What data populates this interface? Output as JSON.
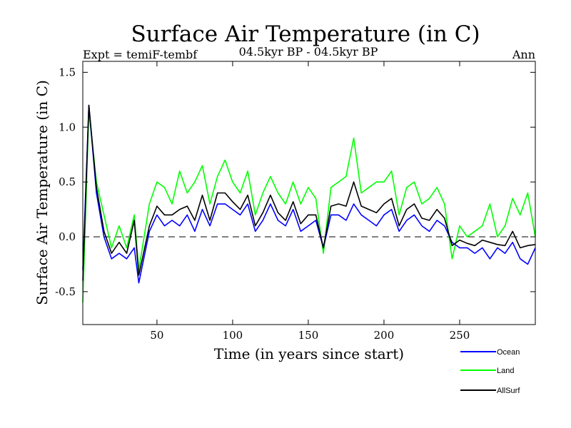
{
  "chart_data": {
    "type": "line",
    "title": "Surface Air Temperature (in C)",
    "subtitle": "04.5kyr BP - 04.5kyr BP",
    "expt_label": "Expt = temiF-tembf",
    "season_label": "Ann",
    "xlabel": "Time (in years since start)",
    "ylabel": "Surface Air Temperature (in C)",
    "xlim": [
      1,
      300
    ],
    "ylim": [
      -0.8,
      1.6
    ],
    "x_ticks": [
      50,
      100,
      150,
      200,
      250
    ],
    "x_tick_labels": [
      "50",
      "100",
      "150",
      "200",
      "250"
    ],
    "y_ticks": [
      -0.5,
      0.0,
      0.5,
      1.0,
      1.5
    ],
    "y_tick_labels": [
      "-0.5",
      "0.0",
      "0.5",
      "1.0",
      "1.5"
    ],
    "zero_line": true,
    "legend_position": "bottom-right",
    "series": [
      {
        "name": "Ocean",
        "color": "#0000ff",
        "x": [
          1,
          5,
          10,
          15,
          20,
          25,
          30,
          35,
          38,
          45,
          50,
          55,
          60,
          65,
          70,
          75,
          80,
          85,
          90,
          95,
          100,
          105,
          110,
          115,
          120,
          125,
          130,
          135,
          140,
          145,
          150,
          155,
          160,
          165,
          170,
          175,
          180,
          185,
          190,
          195,
          200,
          205,
          210,
          215,
          220,
          225,
          230,
          235,
          240,
          245,
          250,
          255,
          260,
          265,
          270,
          275,
          280,
          285,
          290,
          295,
          300
        ],
        "values": [
          -0.3,
          1.2,
          0.4,
          0.0,
          -0.2,
          -0.15,
          -0.2,
          -0.1,
          -0.42,
          0.05,
          0.2,
          0.1,
          0.15,
          0.1,
          0.2,
          0.05,
          0.25,
          0.1,
          0.3,
          0.3,
          0.25,
          0.2,
          0.3,
          0.05,
          0.15,
          0.3,
          0.15,
          0.1,
          0.25,
          0.05,
          0.1,
          0.15,
          -0.1,
          0.2,
          0.2,
          0.15,
          0.3,
          0.2,
          0.15,
          0.1,
          0.2,
          0.25,
          0.05,
          0.15,
          0.2,
          0.1,
          0.05,
          0.15,
          0.1,
          -0.05,
          -0.1,
          -0.1,
          -0.15,
          -0.1,
          -0.2,
          -0.1,
          -0.15,
          -0.05,
          -0.2,
          -0.25,
          -0.1
        ]
      },
      {
        "name": "Land",
        "color": "#00ff00",
        "x": [
          1,
          5,
          10,
          15,
          20,
          25,
          30,
          35,
          38,
          45,
          50,
          55,
          60,
          65,
          70,
          75,
          80,
          85,
          90,
          95,
          100,
          105,
          110,
          115,
          120,
          125,
          130,
          135,
          140,
          145,
          150,
          155,
          160,
          165,
          170,
          175,
          180,
          185,
          190,
          195,
          200,
          205,
          210,
          215,
          220,
          225,
          230,
          235,
          240,
          245,
          250,
          255,
          260,
          265,
          270,
          275,
          280,
          285,
          290,
          295,
          300
        ],
        "values": [
          -0.6,
          1.15,
          0.5,
          0.2,
          -0.1,
          0.1,
          -0.1,
          0.2,
          -0.3,
          0.3,
          0.5,
          0.45,
          0.3,
          0.6,
          0.4,
          0.5,
          0.65,
          0.3,
          0.55,
          0.7,
          0.5,
          0.4,
          0.6,
          0.2,
          0.4,
          0.55,
          0.4,
          0.3,
          0.5,
          0.3,
          0.45,
          0.35,
          -0.15,
          0.45,
          0.5,
          0.55,
          0.9,
          0.4,
          0.45,
          0.5,
          0.5,
          0.6,
          0.2,
          0.45,
          0.5,
          0.3,
          0.35,
          0.45,
          0.3,
          -0.2,
          0.1,
          0.0,
          0.05,
          0.1,
          0.3,
          0.0,
          0.1,
          0.35,
          0.2,
          0.4,
          0.0
        ]
      },
      {
        "name": "AllSurf",
        "color": "#000000",
        "x": [
          1,
          5,
          10,
          15,
          20,
          25,
          30,
          35,
          38,
          45,
          50,
          55,
          60,
          65,
          70,
          75,
          80,
          85,
          90,
          95,
          100,
          105,
          110,
          115,
          120,
          125,
          130,
          135,
          140,
          145,
          150,
          155,
          160,
          165,
          170,
          175,
          180,
          185,
          190,
          195,
          200,
          205,
          210,
          215,
          220,
          225,
          230,
          235,
          240,
          245,
          250,
          255,
          260,
          265,
          270,
          275,
          280,
          285,
          290,
          295,
          300
        ],
        "values": [
          -0.4,
          1.2,
          0.45,
          0.05,
          -0.15,
          -0.05,
          -0.15,
          0.15,
          -0.35,
          0.1,
          0.28,
          0.2,
          0.2,
          0.25,
          0.28,
          0.15,
          0.38,
          0.15,
          0.4,
          0.4,
          0.32,
          0.25,
          0.38,
          0.1,
          0.22,
          0.38,
          0.22,
          0.15,
          0.32,
          0.12,
          0.2,
          0.2,
          -0.1,
          0.28,
          0.3,
          0.28,
          0.5,
          0.28,
          0.25,
          0.22,
          0.3,
          0.35,
          0.1,
          0.25,
          0.3,
          0.17,
          0.15,
          0.25,
          0.17,
          -0.08,
          -0.03,
          -0.06,
          -0.08,
          -0.03,
          -0.05,
          -0.07,
          -0.08,
          0.05,
          -0.1,
          -0.08,
          -0.07
        ]
      }
    ]
  }
}
